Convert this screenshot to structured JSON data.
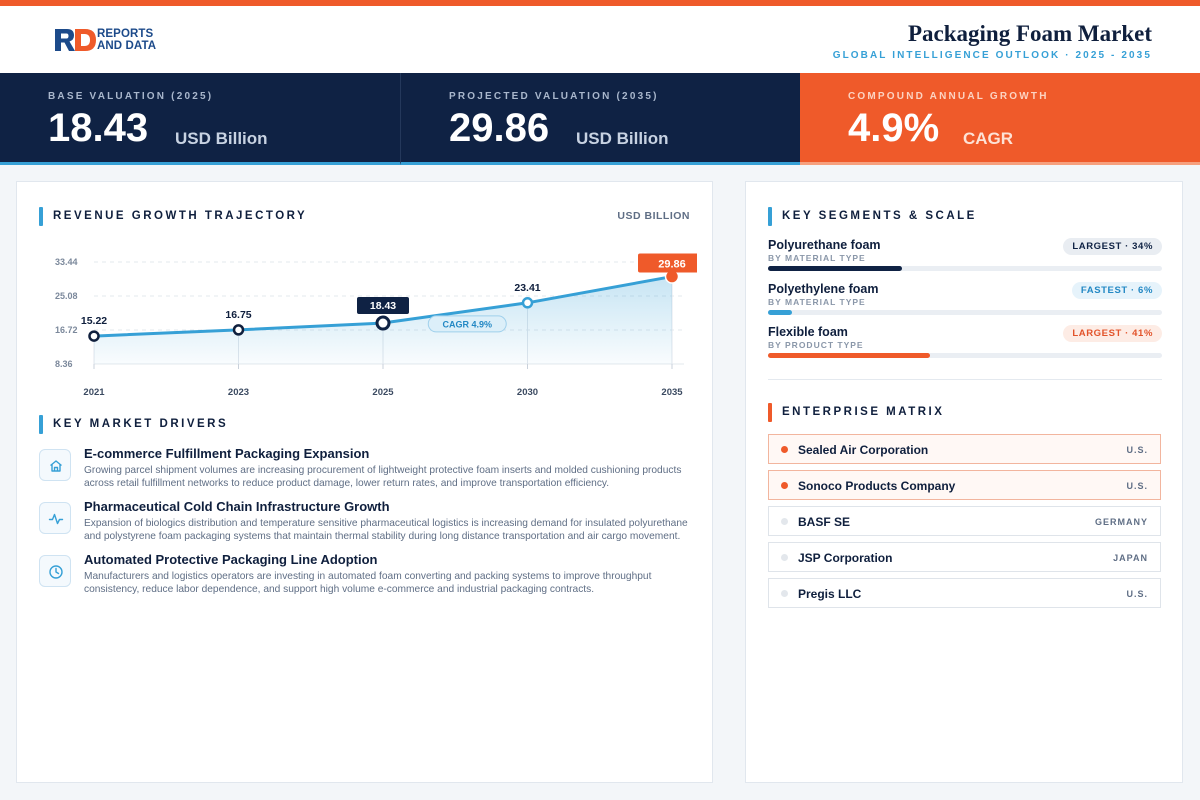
{
  "brand": {
    "line1": "REPORTS",
    "line2": "AND DATA"
  },
  "header": {
    "title": "Packaging Foam Market",
    "subtitle": "GLOBAL INTELLIGENCE OUTLOOK  ·  2025 - 2035"
  },
  "kpis": [
    {
      "label": "BASE VALUATION (2025)",
      "value": "18.43",
      "unit": "USD Billion"
    },
    {
      "label": "PROJECTED VALUATION (2035)",
      "value": "29.86",
      "unit": "USD Billion"
    },
    {
      "label": "COMPOUND ANNUAL GROWTH",
      "value": "4.9%",
      "unit": "CAGR"
    }
  ],
  "revenue": {
    "title": "REVENUE GROWTH TRAJECTORY",
    "unit_note": "USD BILLION"
  },
  "chart_data": {
    "type": "area",
    "categories": [
      "2021",
      "2023",
      "2025",
      "2030",
      "2035"
    ],
    "values": [
      15.22,
      16.75,
      18.43,
      23.41,
      29.86
    ],
    "value_labels": [
      "15.22",
      "16.75",
      "18.43",
      "23.41",
      "29.86"
    ],
    "y_ticks": [
      "33.44",
      "25.08",
      "16.72",
      "8.36"
    ],
    "ylim": [
      8.36,
      33.44
    ],
    "annotation": "CAGR 4.9%",
    "grid": true,
    "colors": {
      "line": "#36a0d6",
      "highlight": "#0f2244",
      "end": "#ef5a2a"
    }
  },
  "drivers": {
    "title": "KEY MARKET DRIVERS",
    "items": [
      {
        "icon": "home-icon",
        "title": "E-commerce Fulfillment Packaging Expansion",
        "desc": "Growing parcel shipment volumes are increasing procurement of lightweight protective foam inserts and molded cushioning products across retail fulfillment networks to reduce product damage, lower return rates, and improve transportation efficiency."
      },
      {
        "icon": "pulse-icon",
        "title": "Pharmaceutical Cold Chain Infrastructure Growth",
        "desc": "Expansion of biologics distribution and temperature sensitive pharmaceutical logistics is increasing demand for insulated polyurethane and polystyrene foam packaging systems that maintain thermal stability during long distance transportation and air cargo movement."
      },
      {
        "icon": "clock-icon",
        "title": "Automated Protective Packaging Line Adoption",
        "desc": "Manufacturers and logistics operators are investing in automated foam converting and packing systems to improve throughput consistency, reduce labor dependence, and support high volume e-commerce and industrial packaging contracts."
      }
    ]
  },
  "segments": {
    "title": "KEY SEGMENTS & SCALE",
    "items": [
      {
        "name": "Polyurethane foam",
        "type": "BY MATERIAL TYPE",
        "badge": "LARGEST · 34%",
        "share": 34,
        "color": "#0f2244",
        "badge_bg": "#e9edf2",
        "badge_fg": "#0f2244"
      },
      {
        "name": "Polyethylene foam",
        "type": "BY MATERIAL TYPE",
        "badge": "FASTEST · 6%",
        "share": 6,
        "color": "#36a0d6",
        "badge_bg": "#e6f3fb",
        "badge_fg": "#2388c4"
      },
      {
        "name": "Flexible foam",
        "type": "BY PRODUCT TYPE",
        "badge": "LARGEST · 41%",
        "share": 41,
        "color": "#ef5a2a",
        "badge_bg": "#fdece5",
        "badge_fg": "#e2532a"
      }
    ]
  },
  "enterprise": {
    "title": "ENTERPRISE MATRIX",
    "items": [
      {
        "name": "Sealed Air Corporation",
        "country": "U.S.",
        "highlight": true
      },
      {
        "name": "Sonoco Products Company",
        "country": "U.S.",
        "highlight": true
      },
      {
        "name": "BASF SE",
        "country": "GERMANY",
        "highlight": false
      },
      {
        "name": "JSP Corporation",
        "country": "JAPAN",
        "highlight": false
      },
      {
        "name": "Pregis LLC",
        "country": "U.S.",
        "highlight": false
      }
    ]
  }
}
